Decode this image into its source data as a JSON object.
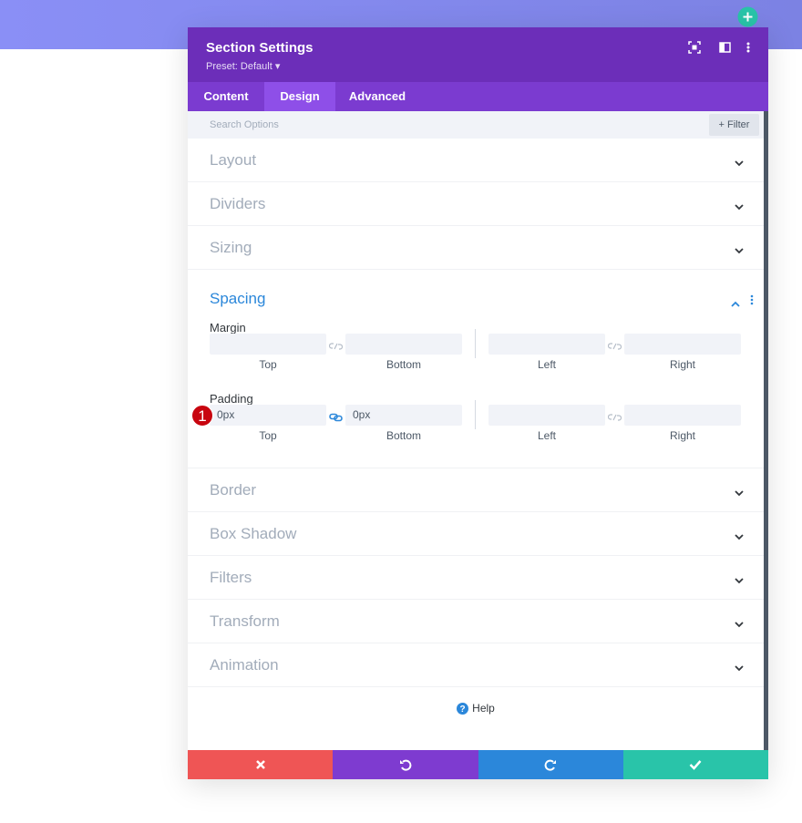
{
  "header": {
    "title": "Section Settings",
    "preset": "Preset: Default"
  },
  "tabs": [
    "Content",
    "Design",
    "Advanced"
  ],
  "active_tab": 1,
  "search": {
    "placeholder": "Search Options",
    "filter": "Filter"
  },
  "sections_before": [
    "Layout",
    "Dividers",
    "Sizing"
  ],
  "spacing": {
    "title": "Spacing",
    "groups": [
      {
        "label": "Margin",
        "field_labels": [
          "Top",
          "Bottom",
          "Left",
          "Right"
        ],
        "values": [
          null,
          null,
          null,
          null
        ],
        "linked": false
      },
      {
        "label": "Padding",
        "field_labels": [
          "Top",
          "Bottom",
          "Left",
          "Right"
        ],
        "values": [
          "0px",
          "0px",
          null,
          null
        ],
        "linked": true,
        "badge": "1"
      }
    ]
  },
  "sections_after": [
    "Border",
    "Box Shadow",
    "Filters",
    "Transform",
    "Animation"
  ],
  "help": "Help"
}
